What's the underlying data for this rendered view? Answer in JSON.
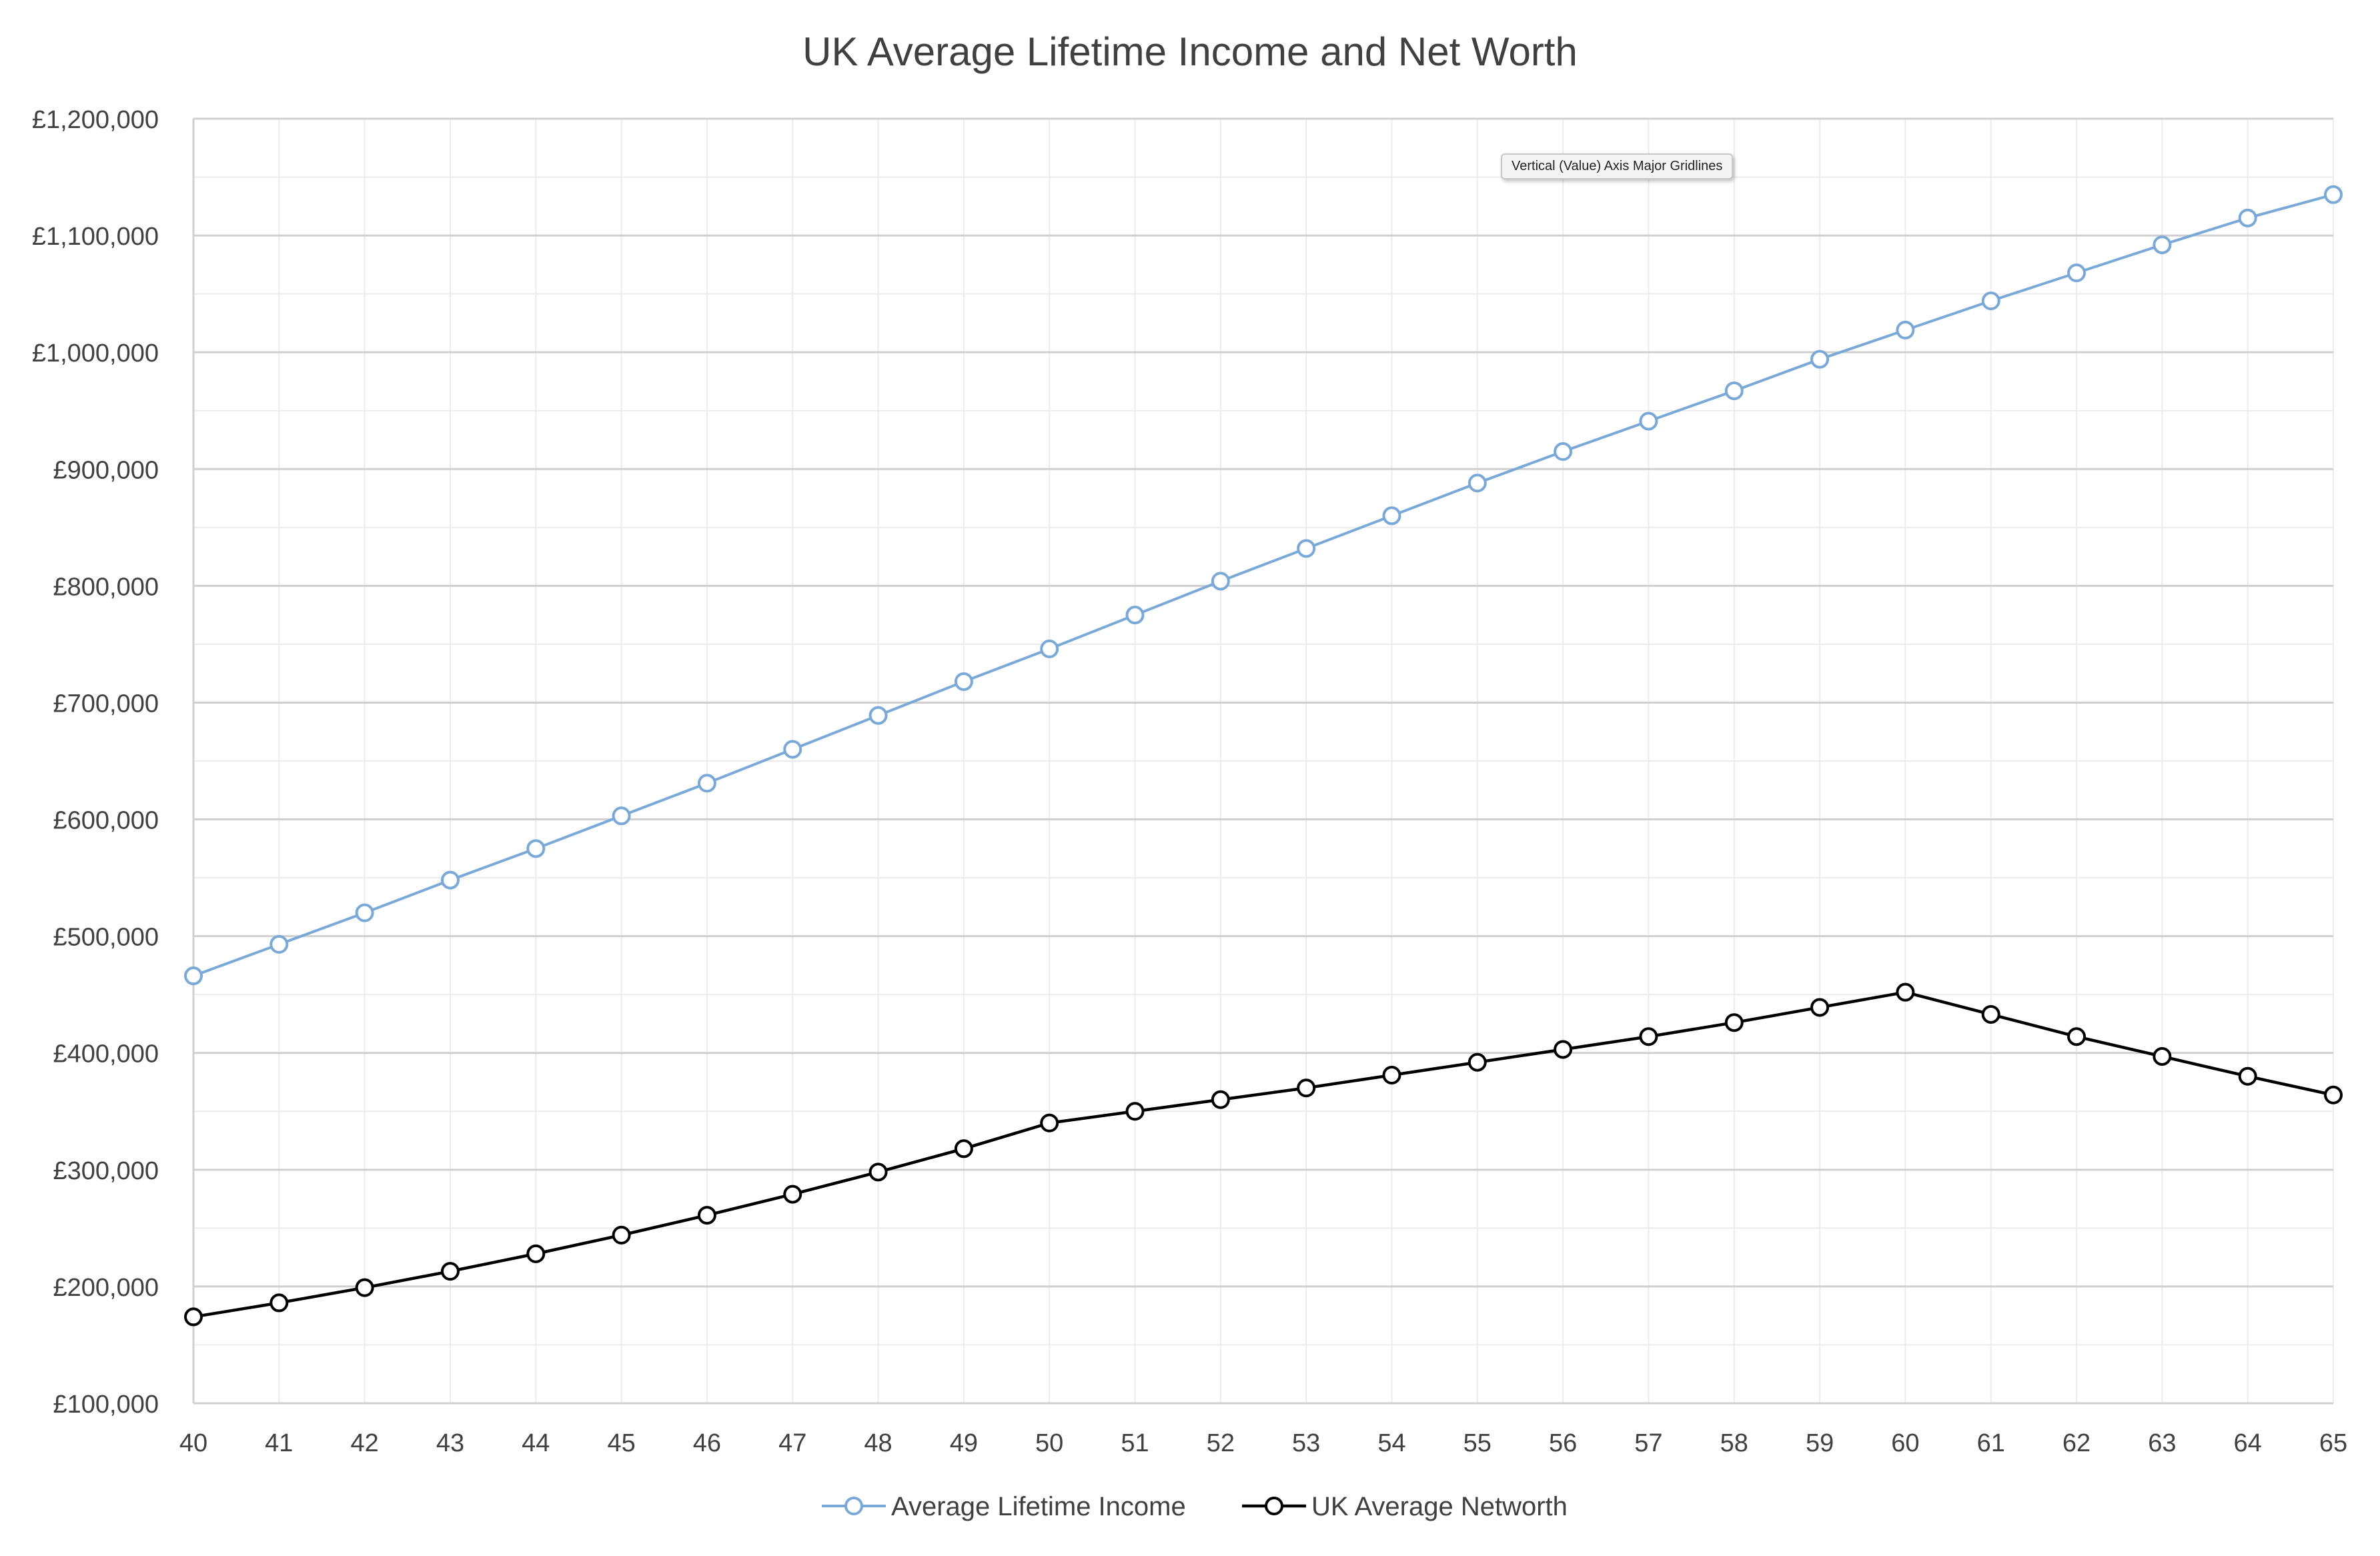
{
  "chart_data": {
    "type": "line",
    "title": "UK Average Lifetime Income and Net Worth",
    "xlabel": "",
    "ylabel": "",
    "x": [
      40,
      41,
      42,
      43,
      44,
      45,
      46,
      47,
      48,
      49,
      50,
      51,
      52,
      53,
      54,
      55,
      56,
      57,
      58,
      59,
      60,
      61,
      62,
      63,
      64,
      65
    ],
    "ylim": [
      100000,
      1200000
    ],
    "ytick_step": 100000,
    "y_tick_labels": [
      "£100,000",
      "£200,000",
      "£300,000",
      "£400,000",
      "£500,000",
      "£600,000",
      "£700,000",
      "£800,000",
      "£900,000",
      "£1,000,000",
      "£1,100,000",
      "£1,200,000"
    ],
    "grid": true,
    "minor_grid": true,
    "legend_position": "bottom",
    "series": [
      {
        "name": "Average Lifetime Income",
        "color": "#7aa9d8",
        "marker": "hollow-circle",
        "values": [
          466000,
          493000,
          520000,
          548000,
          575000,
          603000,
          631000,
          660000,
          689000,
          718000,
          746000,
          775000,
          804000,
          832000,
          860000,
          888000,
          915000,
          941000,
          967000,
          994000,
          1019000,
          1044000,
          1068000,
          1092000,
          1115000,
          1135000
        ]
      },
      {
        "name": "UK Average Networth",
        "color": "#000000",
        "marker": "hollow-circle",
        "values": [
          174000,
          186000,
          199000,
          213000,
          228000,
          244000,
          261000,
          279000,
          298000,
          318000,
          340000,
          350000,
          360000,
          370000,
          381000,
          392000,
          403000,
          414000,
          426000,
          439000,
          452000,
          433000,
          414000,
          397000,
          380000,
          364000
        ]
      }
    ]
  },
  "tooltip": {
    "text": "Vertical (Value) Axis Major Gridlines"
  }
}
